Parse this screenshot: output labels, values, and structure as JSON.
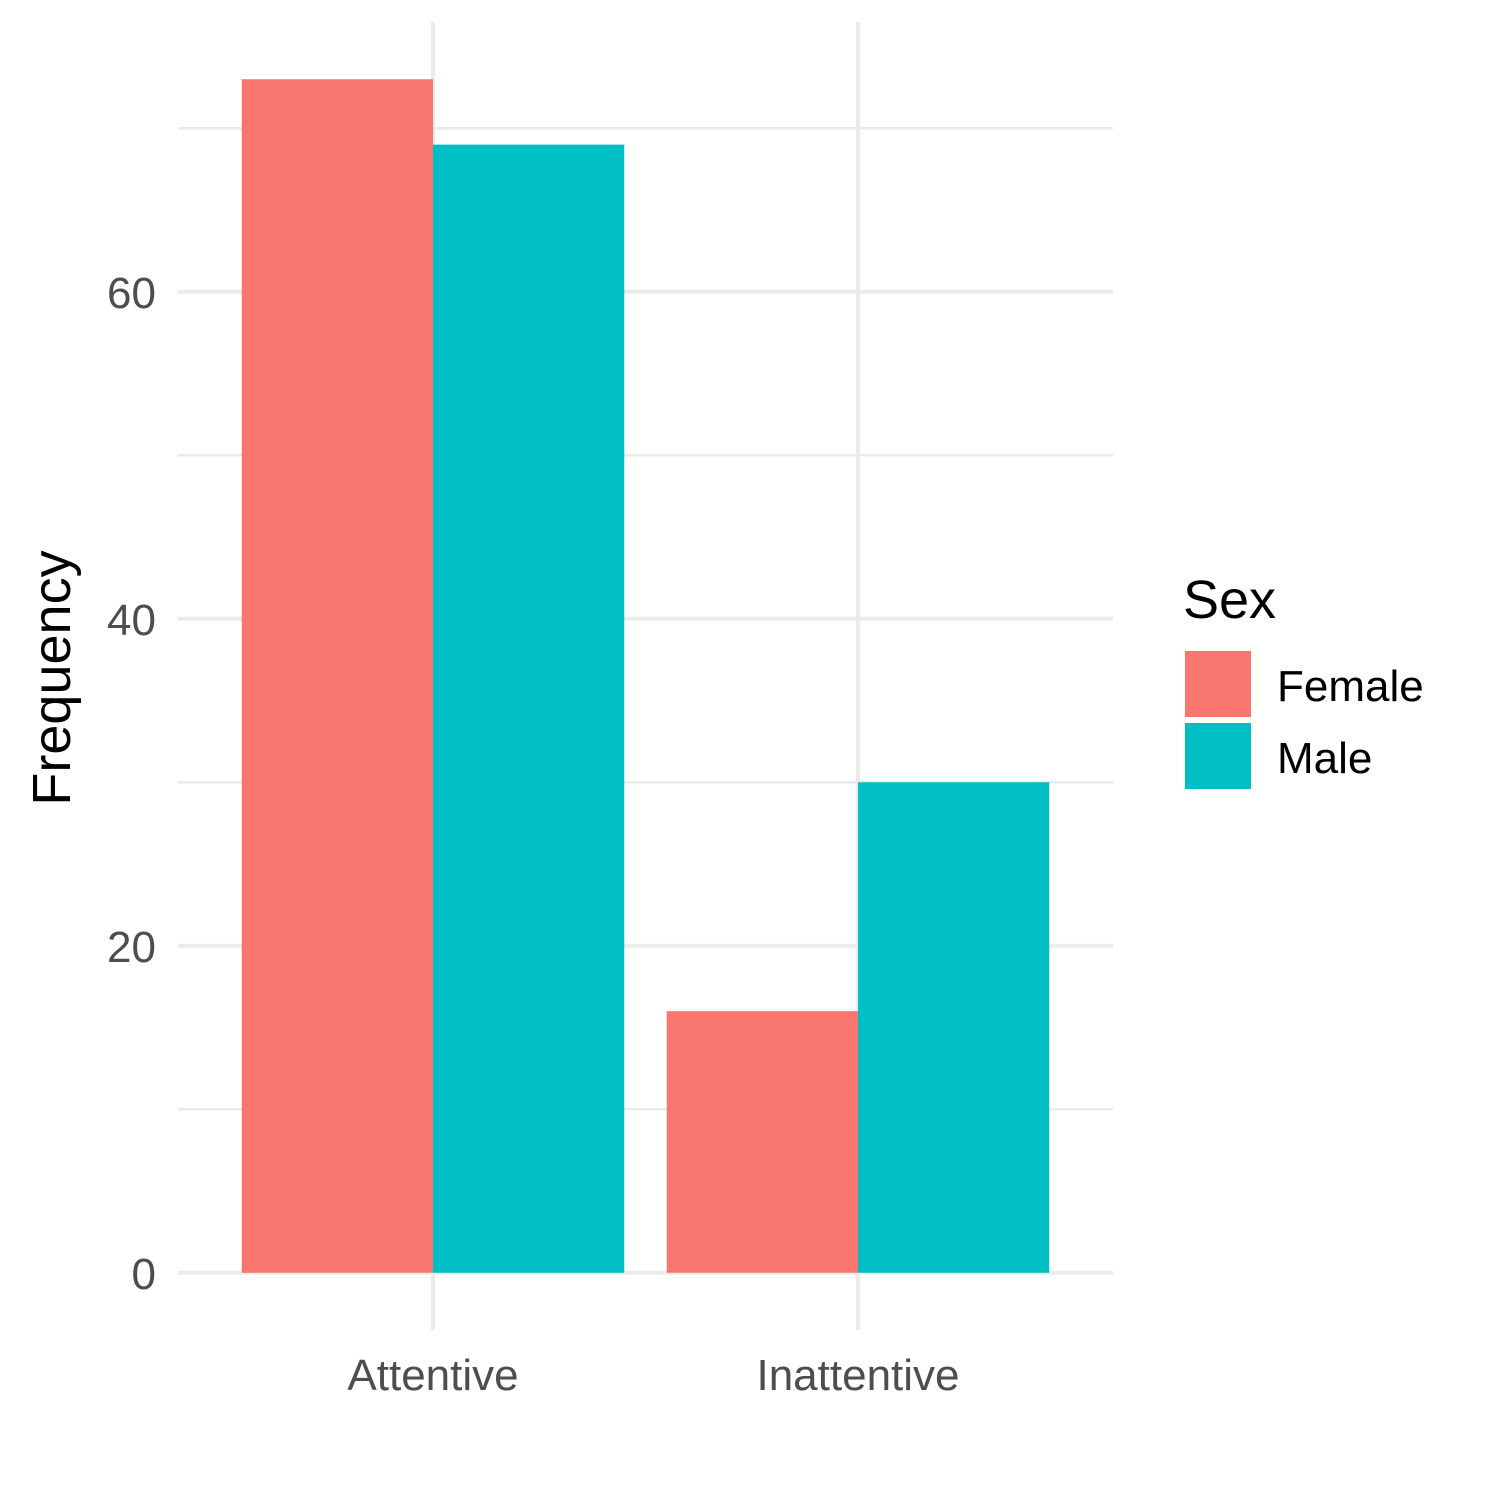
{
  "chart_data": {
    "type": "bar",
    "categories": [
      "Attentive",
      "Inattentive"
    ],
    "series": [
      {
        "name": "Female",
        "color": "#F8766D",
        "values": [
          73,
          16
        ]
      },
      {
        "name": "Male",
        "color": "#00BFC4",
        "values": [
          69,
          30
        ]
      }
    ],
    "ylabel": "Frequency",
    "xlabel": "",
    "ylim": [
      -3.5,
      76.5
    ],
    "yticks": [
      0,
      20,
      40,
      60
    ],
    "ytick_labels": [
      "0",
      "20",
      "40",
      "60"
    ],
    "grid": true,
    "legend": {
      "title": "Sex",
      "position": "right"
    }
  }
}
